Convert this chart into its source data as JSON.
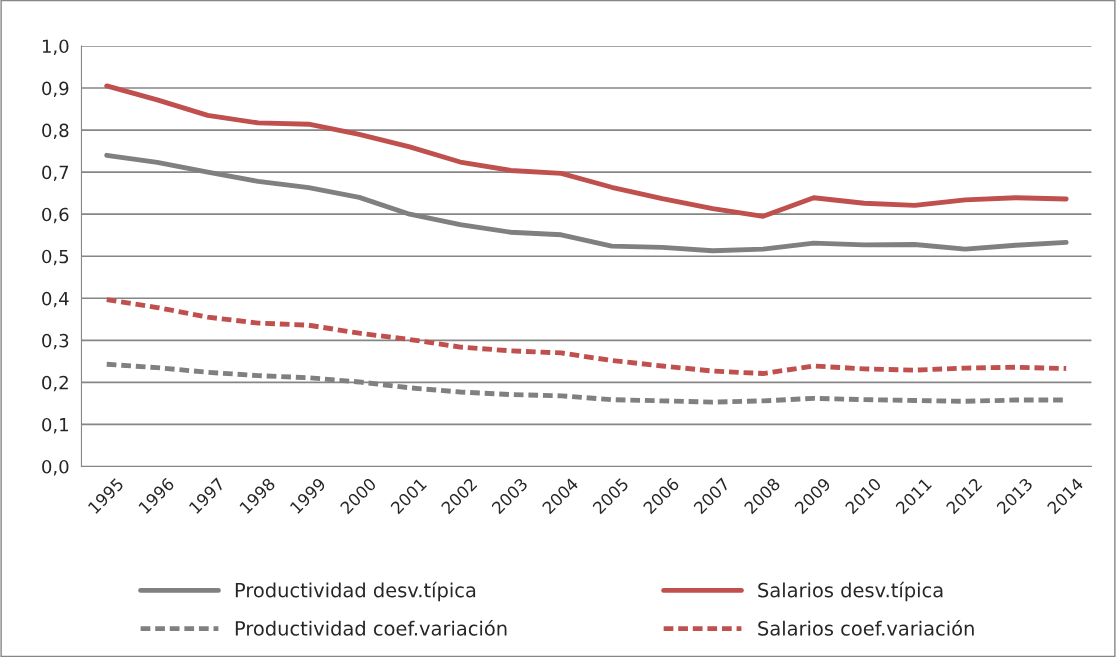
{
  "chart_data": {
    "type": "line",
    "categories": [
      "1995",
      "1996",
      "1997",
      "1998",
      "1999",
      "2000",
      "2001",
      "2002",
      "2003",
      "2004",
      "2005",
      "2006",
      "2007",
      "2008",
      "2009",
      "2010",
      "2011",
      "2012",
      "2013",
      "2014"
    ],
    "series": [
      {
        "name": "Productividad desv.típica",
        "color": "#808080",
        "line_style": "solid",
        "values": [
          0.74,
          0.723,
          0.7,
          0.678,
          0.663,
          0.64,
          0.6,
          0.575,
          0.557,
          0.551,
          0.524,
          0.521,
          0.513,
          0.517,
          0.531,
          0.527,
          0.528,
          0.517,
          0.526,
          0.533
        ]
      },
      {
        "name": "Salarios desv.típica",
        "color": "#c0504d",
        "line_style": "solid",
        "values": [
          0.905,
          0.872,
          0.835,
          0.817,
          0.814,
          0.79,
          0.76,
          0.724,
          0.704,
          0.697,
          0.664,
          0.637,
          0.613,
          0.595,
          0.639,
          0.626,
          0.621,
          0.634,
          0.639,
          0.636
        ]
      },
      {
        "name": "Productividad coef.variación",
        "color": "#808080",
        "line_style": "dashed",
        "values": [
          0.243,
          0.235,
          0.224,
          0.216,
          0.211,
          0.201,
          0.187,
          0.177,
          0.171,
          0.168,
          0.159,
          0.156,
          0.153,
          0.156,
          0.162,
          0.159,
          0.157,
          0.155,
          0.158,
          0.158
        ]
      },
      {
        "name": "Salarios coef.variación",
        "color": "#c0504d",
        "line_style": "dashed",
        "values": [
          0.397,
          0.378,
          0.355,
          0.341,
          0.336,
          0.317,
          0.302,
          0.284,
          0.275,
          0.27,
          0.252,
          0.239,
          0.227,
          0.221,
          0.239,
          0.232,
          0.229,
          0.234,
          0.236,
          0.233
        ]
      }
    ],
    "ylim": [
      0,
      1
    ],
    "yticks": [
      {
        "value": 0,
        "label": "0,0"
      },
      {
        "value": 0.1,
        "label": "0,1"
      },
      {
        "value": 0.2,
        "label": "0,2"
      },
      {
        "value": 0.3,
        "label": "0,3"
      },
      {
        "value": 0.4,
        "label": "0,4"
      },
      {
        "value": 0.5,
        "label": "0,5"
      },
      {
        "value": 0.6,
        "label": "0,6"
      },
      {
        "value": 0.7,
        "label": "0,7"
      },
      {
        "value": 0.8,
        "label": "0,8"
      },
      {
        "value": 0.9,
        "label": "0,9"
      },
      {
        "value": 1.0,
        "label": "1,0"
      }
    ],
    "grid": "y",
    "legend": "bottom",
    "marker": "none"
  }
}
